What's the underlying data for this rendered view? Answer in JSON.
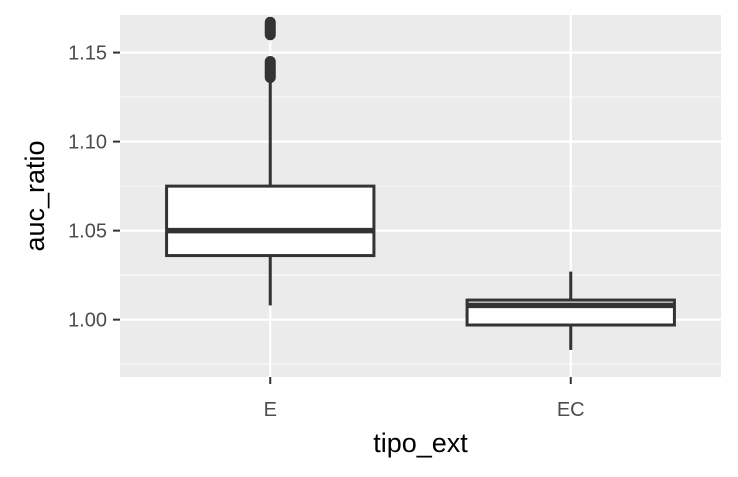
{
  "chart_data": {
    "type": "boxplot",
    "title": "",
    "xlabel": "tipo_ext",
    "ylabel": "auc_ratio",
    "categories": [
      "E",
      "EC"
    ],
    "ylim": [
      0.9678,
      1.1711
    ],
    "yticks": [
      1.0,
      1.05,
      1.1,
      1.15
    ],
    "ytick_labels": [
      "1.00",
      "1.05",
      "1.10",
      "1.15"
    ],
    "grid": true,
    "legend": "none",
    "boxes": [
      {
        "category": "E",
        "lower_whisker": 1.008,
        "q1": 1.036,
        "median": 1.05,
        "q3": 1.075,
        "upper_whisker": 1.134,
        "outliers": [
          1.136,
          1.137,
          1.138,
          1.139,
          1.14,
          1.141,
          1.142,
          1.143,
          1.144,
          1.145,
          1.16,
          1.161,
          1.162,
          1.163,
          1.164,
          1.165,
          1.166,
          1.167
        ]
      },
      {
        "category": "EC",
        "lower_whisker": 0.983,
        "q1": 0.997,
        "median": 1.008,
        "q3": 1.011,
        "upper_whisker": 1.027,
        "outliers": []
      }
    ],
    "colors": {
      "panel": "#ebebeb",
      "grid_major": "#ffffff",
      "box_fill": "#ffffff",
      "box_line": "#333333",
      "tick_text": "#4d4d4d",
      "title_text": "#000000"
    }
  }
}
